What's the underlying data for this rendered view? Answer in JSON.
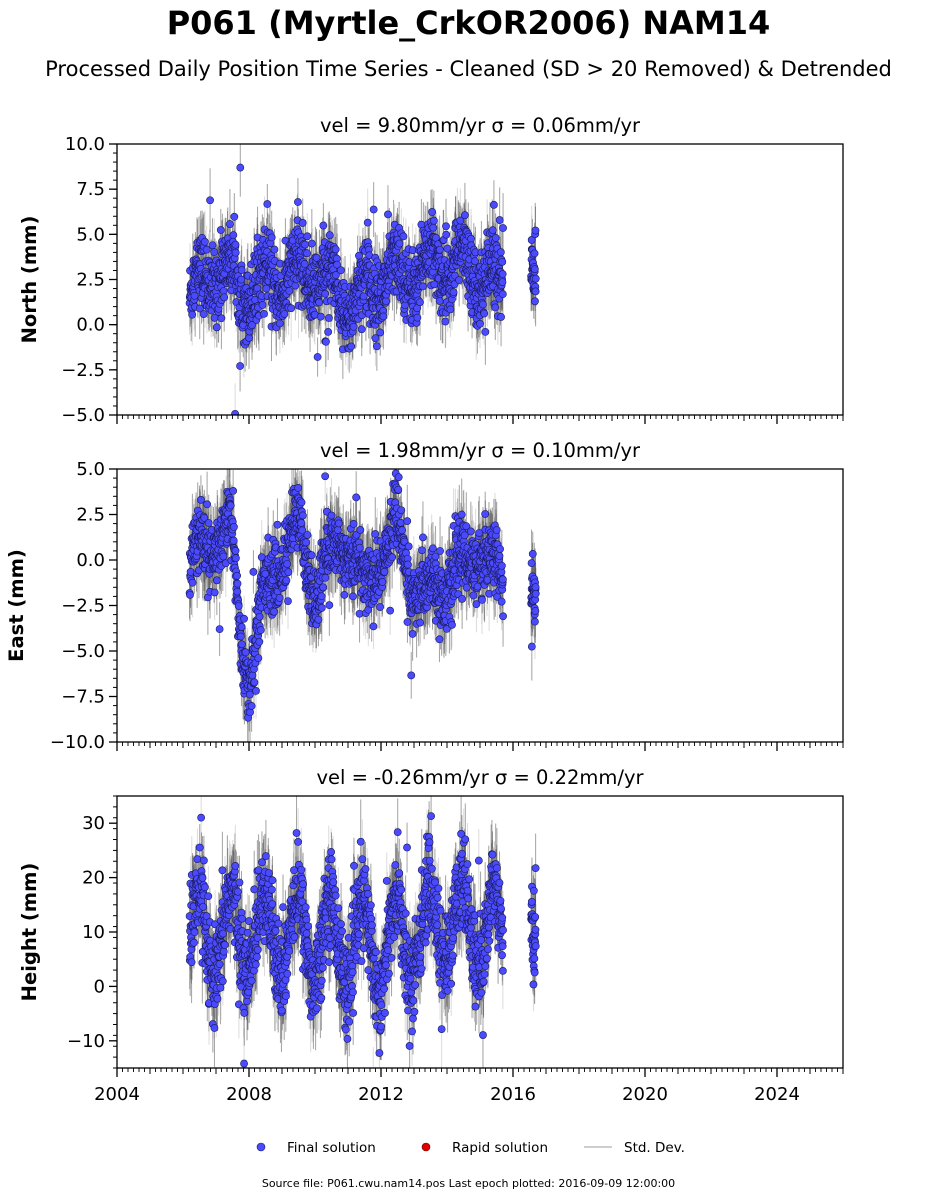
{
  "header": {
    "title": "P061 (Myrtle_CrkOR2006) NAM14",
    "subtitle": "Processed Daily Position Time Series - Cleaned (SD > 20 Removed) & Detrended"
  },
  "footer": {
    "source": "Source file: P061.cwu.nam14.pos  Last epoch plotted: 2016-09-09 12:00:00"
  },
  "colors": {
    "final": "#4a4aff",
    "rapid": "#dd0000",
    "stddev": "#bdbdbd",
    "stddev_dense": "#555555"
  },
  "chart_data": [
    {
      "type": "scatter",
      "panel": "north",
      "title": "vel = 9.80mm/yr   σ = 0.06mm/yr",
      "ylabel": "North (mm)",
      "xlim": [
        2004,
        2026
      ],
      "ylim": [
        -5,
        10
      ],
      "yticks": [
        -5.0,
        -2.5,
        0.0,
        2.5,
        5.0,
        7.5,
        10.0
      ],
      "ytick_labels": [
        "−5.0",
        "−2.5",
        "0.0",
        "2.5",
        "5.0",
        "7.5",
        "10.0"
      ],
      "series_profile": {
        "x_start": 2006.2,
        "x_end": 2015.7,
        "gap_end": 2016.55,
        "x_last": 2016.69,
        "mean": [
          [
            2006.2,
            1.5
          ],
          [
            2007.0,
            3.2
          ],
          [
            2008.0,
            2.0
          ],
          [
            2009.0,
            2.5
          ],
          [
            2010.0,
            3.0
          ],
          [
            2011.0,
            1.0
          ],
          [
            2012.0,
            2.5
          ],
          [
            2013.0,
            3.0
          ],
          [
            2014.0,
            3.5
          ],
          [
            2015.0,
            3.0
          ],
          [
            2015.7,
            2.0
          ],
          [
            2016.6,
            2.5
          ]
        ],
        "seasonal_amp": 1.0,
        "scatter_sd": 1.0,
        "error_bar": 1.5
      }
    },
    {
      "type": "scatter",
      "panel": "east",
      "title": "vel = 1.98mm/yr   σ = 0.10mm/yr",
      "ylabel": "East (mm)",
      "xlim": [
        2004,
        2026
      ],
      "ylim": [
        -10,
        5
      ],
      "yticks": [
        -10.0,
        -7.5,
        -5.0,
        -2.5,
        0.0,
        2.5,
        5.0
      ],
      "ytick_labels": [
        "−10.0",
        "−7.5",
        "−5.0",
        "−2.5",
        "0.0",
        "2.5",
        "5.0"
      ],
      "series_profile": {
        "x_start": 2006.2,
        "x_end": 2015.7,
        "gap_end": 2016.55,
        "x_last": 2016.69,
        "mean": [
          [
            2006.2,
            -0.5
          ],
          [
            2006.9,
            1.0
          ],
          [
            2007.4,
            2.0
          ],
          [
            2007.8,
            -5.0
          ],
          [
            2008.0,
            -6.0
          ],
          [
            2008.5,
            -2.0
          ],
          [
            2009.0,
            0.5
          ],
          [
            2009.5,
            1.5
          ],
          [
            2010.0,
            -1.5
          ],
          [
            2010.5,
            0.0
          ],
          [
            2011.0,
            1.5
          ],
          [
            2011.5,
            -2.0
          ],
          [
            2012.0,
            0.5
          ],
          [
            2012.5,
            1.5
          ],
          [
            2013.0,
            -1.5
          ],
          [
            2013.5,
            -2.0
          ],
          [
            2014.0,
            -1.0
          ],
          [
            2014.6,
            -0.5
          ],
          [
            2015.0,
            1.0
          ],
          [
            2015.6,
            -1.5
          ],
          [
            2016.6,
            -2.5
          ]
        ],
        "seasonal_amp": 1.0,
        "scatter_sd": 0.9,
        "error_bar": 1.6
      }
    },
    {
      "type": "scatter",
      "panel": "height",
      "title": "vel = -0.26mm/yr   σ = 0.22mm/yr",
      "ylabel": "Height (mm)",
      "xlim": [
        2004,
        2026
      ],
      "ylim": [
        -15,
        35
      ],
      "yticks": [
        -10,
        0,
        10,
        20,
        30
      ],
      "ytick_labels": [
        "−10",
        "0",
        "10",
        "20",
        "30"
      ],
      "xticks": [
        2004,
        2008,
        2012,
        2016,
        2020,
        2024
      ],
      "xtick_labels": [
        "2004",
        "2008",
        "2012",
        "2016",
        "2020",
        "2024"
      ],
      "series_profile": {
        "x_start": 2006.2,
        "x_end": 2015.7,
        "gap_end": 2016.55,
        "x_last": 2016.69,
        "mean": [
          [
            2006.2,
            8.0
          ],
          [
            2008.0,
            10.0
          ],
          [
            2010.0,
            9.0
          ],
          [
            2012.0,
            7.0
          ],
          [
            2014.0,
            12.0
          ],
          [
            2015.7,
            10.0
          ],
          [
            2016.6,
            6.0
          ]
        ],
        "seasonal_amp": 8.0,
        "scatter_sd": 4.0,
        "error_bar": 6.0
      }
    }
  ],
  "legend": {
    "final": "Final solution",
    "rapid": "Rapid solution",
    "stddev": "Std. Dev."
  }
}
